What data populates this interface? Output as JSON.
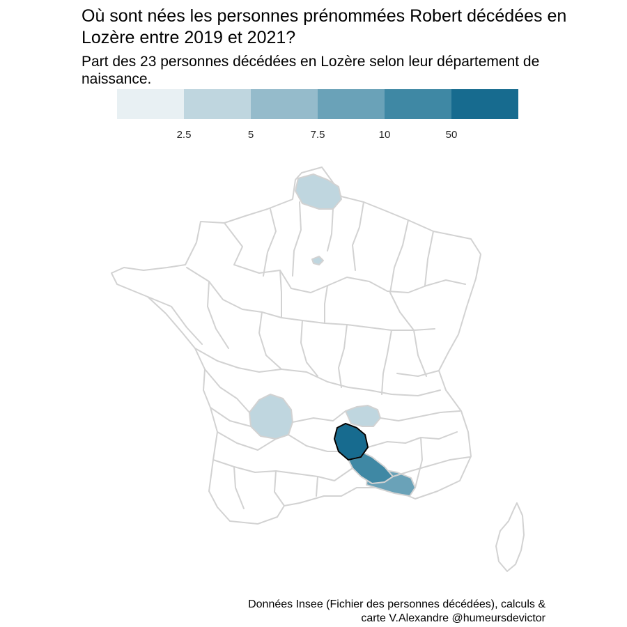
{
  "title": "Où sont nées les personnes prénommées Robert décédées en Lozère entre 2019 et 2021?",
  "subtitle": "Part des 23 personnes décédées en Lozère selon leur département de naissance.",
  "caption_line1": "Données Insee (Fichier des personnes décédées), calculs &",
  "caption_line2": "carte V.Alexandre @humeursdevictor",
  "legend": {
    "break_labels": [
      "2.5",
      "5",
      "7.5",
      "10",
      "50"
    ],
    "colors": [
      "#e8f0f3",
      "#bfd6df",
      "#95bbcb",
      "#6aa2b8",
      "#3f88a4",
      "#176b8f"
    ]
  },
  "map": {
    "border_color": "#d2d2d2",
    "highlight_outline": "#000000",
    "highlighted_department": "Lozère",
    "shaded_departments": [
      {
        "department": "Lozère",
        "share_class": 6
      },
      {
        "department": "Gard",
        "share_class": 5
      },
      {
        "department": "Bouches-du-Rhône",
        "share_class": 4
      },
      {
        "department": "Pas-de-Calais",
        "share_class": 2
      },
      {
        "department": "Haute-Vienne",
        "share_class": 2
      },
      {
        "department": "Haute-Loire",
        "share_class": 2
      },
      {
        "department": "Paris",
        "share_class": 2
      }
    ]
  }
}
